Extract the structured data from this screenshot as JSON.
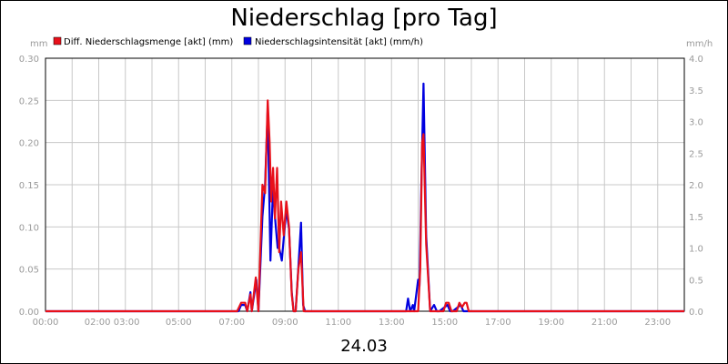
{
  "chart_data": {
    "type": "line",
    "title": "Niederschlag [pro Tag]",
    "date_label": "24.03",
    "y_left_unit": "mm",
    "y_right_unit": "mm/h",
    "ylim_left": [
      0,
      0.3
    ],
    "ylim_right": [
      0,
      4.0
    ],
    "y_left_ticks": [
      "0.00",
      "0.05",
      "0.10",
      "0.15",
      "0.20",
      "0.25",
      "0.30"
    ],
    "y_right_ticks": [
      "0.0",
      "0.5",
      "1.0",
      "1.5",
      "2.0",
      "2.5",
      "3.0",
      "3.5",
      "4.0"
    ],
    "x_ticks": [
      "00:00",
      "02:00 03:00",
      "05:00",
      "07:00",
      "09:00",
      "11:00",
      "13:00",
      "15:00",
      "17:00",
      "19:00",
      "21:00",
      "23:00"
    ],
    "x_range_hours": [
      0,
      24
    ],
    "grid": true,
    "legend_position": "top-left",
    "series": [
      {
        "name": "Diff. Niederschlagsmenge [akt] (mm)",
        "color": "#e8101a",
        "axis": "left",
        "x": [
          0,
          7.2,
          7.35,
          7.5,
          7.58,
          7.7,
          7.75,
          7.9,
          8.0,
          8.1,
          8.15,
          8.25,
          8.35,
          8.42,
          8.48,
          8.55,
          8.62,
          8.7,
          8.78,
          8.85,
          8.95,
          9.05,
          9.15,
          9.25,
          9.32,
          9.4,
          9.5,
          9.6,
          9.7,
          14.0,
          14.08,
          14.15,
          14.2,
          14.3,
          14.45,
          14.6,
          14.95,
          15.05,
          15.15,
          15.25,
          15.45,
          15.55,
          15.65,
          15.75,
          15.82,
          15.9,
          24
        ],
        "y": [
          0,
          0,
          0.01,
          0.01,
          0,
          0.02,
          0,
          0.04,
          0,
          0.1,
          0.15,
          0.14,
          0.25,
          0.2,
          0.13,
          0.17,
          0.11,
          0.17,
          0.07,
          0.13,
          0.09,
          0.13,
          0.1,
          0.02,
          0,
          0,
          0.05,
          0.07,
          0,
          0,
          0.05,
          0.2,
          0.21,
          0.08,
          0,
          0,
          0,
          0.01,
          0.01,
          0,
          0,
          0.01,
          0.005,
          0.01,
          0.01,
          0,
          0
        ]
      },
      {
        "name": "Niederschlagsintensität [akt] (mm/h)",
        "color": "#0000e0",
        "axis": "right",
        "x": [
          0,
          7.25,
          7.35,
          7.5,
          7.58,
          7.7,
          7.75,
          7.92,
          8.0,
          8.15,
          8.25,
          8.35,
          8.45,
          8.55,
          8.62,
          8.72,
          8.78,
          8.88,
          8.98,
          9.05,
          9.15,
          9.25,
          9.32,
          9.4,
          9.5,
          9.6,
          9.68,
          9.75,
          13.55,
          13.62,
          13.7,
          13.8,
          13.85,
          14.0,
          14.05,
          14.12,
          14.2,
          14.3,
          14.45,
          14.6,
          14.7,
          14.8,
          15.1,
          15.2,
          15.3,
          15.6,
          15.7,
          15.8,
          24
        ],
        "y": [
          0,
          0,
          0.1,
          0.1,
          0,
          0.3,
          0,
          0.5,
          0,
          1.5,
          2.0,
          3.2,
          0.8,
          2.0,
          1.5,
          1.0,
          1.0,
          0.8,
          1.3,
          1.6,
          1.3,
          0.3,
          0,
          0,
          0.7,
          1.4,
          0.1,
          0,
          0,
          0.2,
          0,
          0.1,
          0,
          0.5,
          0.4,
          2.0,
          3.6,
          1.2,
          0,
          0.1,
          0,
          0,
          0.1,
          0,
          0,
          0.1,
          0,
          0,
          0
        ]
      }
    ]
  }
}
